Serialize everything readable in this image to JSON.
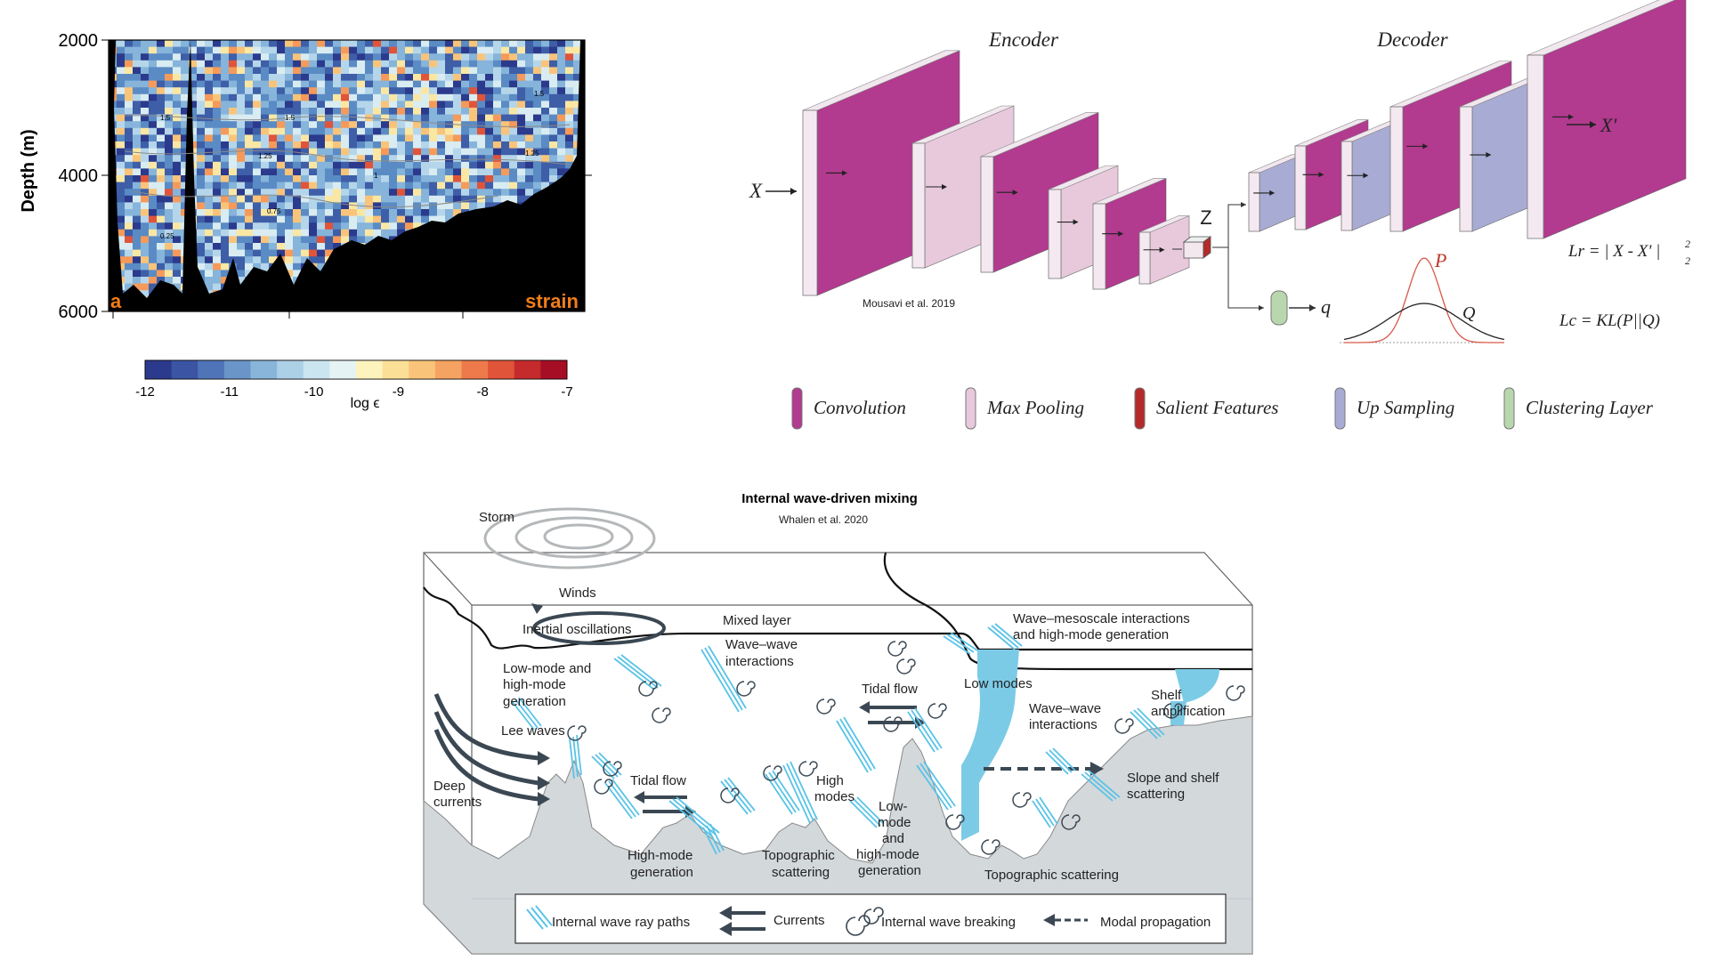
{
  "heatmap": {
    "y_axis_label": "Depth (m)",
    "y_ticks": [
      "2000",
      "4000",
      "6000"
    ],
    "panel_letter": "a",
    "panel_tag": "strain",
    "colorbar_ticks": [
      "-12",
      "-11",
      "-10",
      "-9",
      "-8",
      "-7"
    ],
    "colorbar_label": "log ϵ",
    "contour_labels": [
      "1.5",
      "1.25",
      "1",
      "0.75",
      "0.25"
    ]
  },
  "chart_data": {
    "type": "heatmap",
    "title": "",
    "ylabel": "Depth (m)",
    "ylim": [
      6000,
      2000
    ],
    "colorbar": {
      "label": "log ϵ",
      "range": [
        -12,
        -7
      ],
      "ticks": [
        -12,
        -11,
        -10,
        -9,
        -8,
        -7
      ]
    }
  },
  "colors": {
    "convolution": "#b23a8f",
    "max_pooling": "#e8c9dc",
    "salient_features": "#b52a2a",
    "up_sampling": "#a8acd4",
    "clustering_layer": "#b9d7ae",
    "ocean_blue": "#7ccbe6",
    "seabed": "#d3d8db",
    "current_arrow": "#3b4853"
  },
  "autoencoder": {
    "encoder_title": "Encoder",
    "decoder_title": "Decoder",
    "input_label": "X",
    "output_label": "X'",
    "latent_label": "Z",
    "cluster_output_label": "q",
    "dist_p": "P",
    "dist_q": "Q",
    "loss_reconstruction": "Lr = | X - X' |",
    "loss_reconstruction_sup": "2",
    "loss_reconstruction_sub": "2",
    "loss_clustering": "Lc = KL(P||Q)",
    "citation": "Mousavi et al. 2019",
    "legend": [
      {
        "label": "Convolution",
        "color": "#b23a8f"
      },
      {
        "label": "Max Pooling",
        "color": "#e8c9dc"
      },
      {
        "label": "Salient Features",
        "color": "#b52a2a"
      },
      {
        "label": "Up Sampling",
        "color": "#a8acd4"
      },
      {
        "label": "Clustering Layer",
        "color": "#b9d7ae"
      }
    ]
  },
  "mixing": {
    "title": "Internal wave-driven mixing",
    "citation": "Whalen et al. 2020",
    "labels": {
      "storm": "Storm",
      "winds": "Winds",
      "inertial": "Inertial oscillations",
      "mixed_layer": "Mixed layer",
      "wave_meso_1": "Wave–mesoscale interactions",
      "wave_meso_2": "and high-mode generation",
      "wave_wave_a1": "Wave–wave",
      "wave_wave_a2": "interactions",
      "low_high_1": "Low-mode and",
      "low_high_2": "high-mode",
      "low_high_3": "generation",
      "tidal_flow_1": "Tidal flow",
      "low_modes": "Low modes",
      "shelf_1": "Shelf",
      "shelf_2": "amplification",
      "wave_wave_b1": "Wave–wave",
      "wave_wave_b2": "interactions",
      "lee_waves": "Lee waves",
      "deep_1": "Deep",
      "deep_2": "currents",
      "tidal_flow_2": "Tidal flow",
      "high_modes_1": "High",
      "high_modes_2": "modes",
      "lowmode_1": "Low-",
      "lowmode_2": "mode",
      "lowmode_3": "and",
      "lowmode_4": "high-mode",
      "lowmode_5": "generation",
      "slope_1": "Slope and shelf",
      "slope_2": "scattering",
      "hm_gen_1": "High-mode",
      "hm_gen_2": "generation",
      "topo_1": "Topographic",
      "topo_2": "scattering",
      "topo_3": "Topographic scattering"
    },
    "legend": [
      {
        "label": "Internal wave ray paths"
      },
      {
        "label": "Currents"
      },
      {
        "label": "Internal wave breaking"
      },
      {
        "label": "Modal propagation"
      }
    ]
  }
}
